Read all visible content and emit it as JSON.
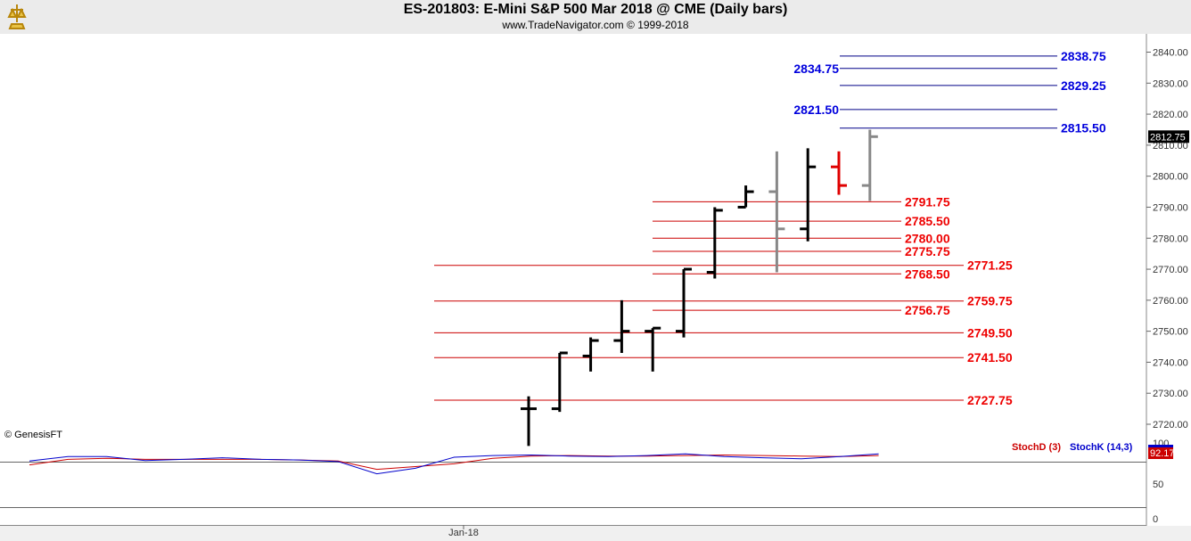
{
  "header": {
    "title": "ES-201803:  E-Mini S&P 500 Mar 2018 @ CME  (Daily bars)",
    "subtitle": "www.TradeNavigator.com © 1999-2018"
  },
  "chart_data": {
    "type": "ohlc",
    "price_axis": {
      "ylim": [
        2710,
        2842
      ],
      "ticks": [
        "2720.00",
        "2730.00",
        "2740.00",
        "2750.00",
        "2760.00",
        "2770.00",
        "2780.00",
        "2790.00",
        "2800.00",
        "2810.00",
        "2820.00",
        "2830.00",
        "2840.00"
      ],
      "last_price_label": "2812.75"
    },
    "x_tick_label": "Jan-18",
    "copyright": "© GenesisFT",
    "bars": [
      {
        "open": 2725,
        "high": 2729,
        "low": 2713,
        "close": 2725,
        "color": "#000000"
      },
      {
        "open": 2725,
        "high": 2743,
        "low": 2724,
        "close": 2743,
        "color": "#000000"
      },
      {
        "open": 2742,
        "high": 2748,
        "low": 2737,
        "close": 2747,
        "color": "#000000"
      },
      {
        "open": 2747,
        "high": 2760,
        "low": 2743,
        "close": 2750,
        "color": "#000000"
      },
      {
        "open": 2750,
        "high": 2751,
        "low": 2737,
        "close": 2751,
        "color": "#000000"
      },
      {
        "open": 2750,
        "high": 2770,
        "low": 2748,
        "close": 2770,
        "color": "#000000"
      },
      {
        "open": 2769,
        "high": 2790,
        "low": 2767,
        "close": 2789,
        "color": "#000000"
      },
      {
        "open": 2790,
        "high": 2797,
        "low": 2790,
        "close": 2795,
        "color": "#000000"
      },
      {
        "open": 2795,
        "high": 2808,
        "low": 2769,
        "close": 2783,
        "color": "#888888"
      },
      {
        "open": 2783,
        "high": 2809,
        "low": 2779,
        "close": 2803,
        "color": "#000000"
      },
      {
        "open": 2803,
        "high": 2808,
        "low": 2794,
        "close": 2797,
        "color": "#e00000"
      },
      {
        "open": 2797,
        "high": 2815,
        "low": 2792,
        "close": 2812.75,
        "color": "#888888"
      }
    ],
    "support_levels": [
      "2791.75",
      "2785.50",
      "2780.00",
      "2775.75",
      "2771.25",
      "2768.50",
      "2759.75",
      "2756.75",
      "2749.50",
      "2741.50",
      "2727.75"
    ],
    "resistance_levels": [
      "2838.75",
      "2834.75",
      "2829.25",
      "2821.50",
      "2815.50"
    ],
    "indicator": {
      "series": [
        {
          "name": "StochD (3)",
          "color": "#cc0000",
          "values": [
            78,
            88,
            90,
            88,
            88,
            88,
            88,
            87,
            85,
            70,
            75,
            80,
            90,
            94,
            95,
            94,
            94,
            95,
            96,
            95,
            94,
            93,
            95
          ]
        },
        {
          "name": "StochK (14,3)",
          "color": "#0000cc",
          "values": [
            85,
            93,
            93,
            86,
            88,
            91,
            88,
            87,
            84,
            62,
            72,
            92,
            95,
            96,
            94,
            93,
            95,
            98,
            93,
            91,
            89,
            93,
            98
          ]
        }
      ],
      "ticks": [
        "0",
        "50",
        "100"
      ],
      "last_value_label": "92.17",
      "ylim": [
        0,
        100
      ]
    }
  }
}
